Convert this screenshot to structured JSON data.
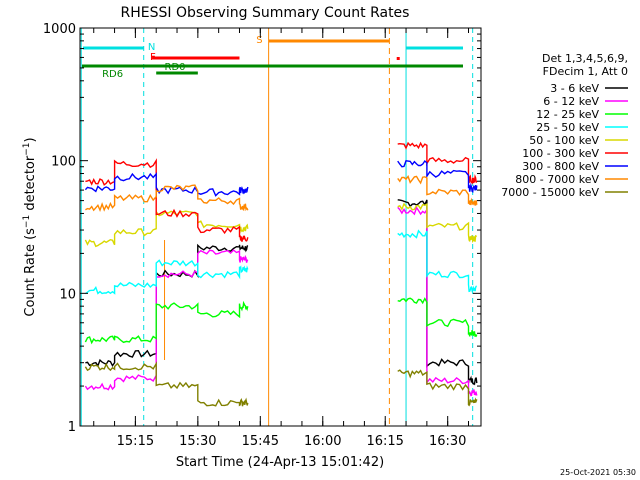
{
  "chart_data": {
    "type": "line",
    "title": "RHESSI Observing Summary Count Rates",
    "xlabel": "Start Time (24-Apr-13 15:01:42)",
    "ylabel": "Count Rate (s⁻¹ detector⁻¹)",
    "yscale": "log",
    "xlim": [
      "15:01:42",
      "16:38:00"
    ],
    "ylim": [
      1,
      1000
    ],
    "x_ticks": [
      "15:15",
      "15:30",
      "15:45",
      "16:00",
      "16:15",
      "16:30"
    ],
    "y_ticks": [
      "1",
      "10",
      "100",
      "1000"
    ],
    "legend": {
      "placement": "right",
      "header": [
        "Det 1,3,4,5,6,9,",
        "FDecim 1, Att 0"
      ]
    },
    "flag_labels": {
      "night": "N",
      "flare": "F",
      "saa": "S",
      "rd0": "RD0",
      "rd6": "RD6"
    },
    "series": [
      {
        "name": "3 - 6 keV",
        "color": "#000000",
        "values": [
          3.0,
          3.5,
          14,
          22,
          22,
          0,
          0,
          48,
          3.0,
          2.2
        ]
      },
      {
        "name": "6 - 12 keV",
        "color": "#ff00ff",
        "values": [
          2.0,
          2.3,
          14,
          20,
          18,
          0,
          0,
          42,
          2.2,
          1.8
        ]
      },
      {
        "name": "12 - 25 keV",
        "color": "#00ff00",
        "values": [
          4.5,
          4.5,
          8,
          7,
          8,
          0,
          0,
          9,
          6,
          5
        ]
      },
      {
        "name": "25 - 50 keV",
        "color": "#00ffff",
        "values": [
          10.5,
          11.5,
          17,
          14,
          15,
          0,
          0,
          28,
          14,
          11
        ]
      },
      {
        "name": "50 - 100 keV",
        "color": "#d8d800",
        "values": [
          24,
          29,
          40,
          33,
          31,
          0,
          0,
          45,
          32,
          26
        ]
      },
      {
        "name": "100 - 300 keV",
        "color": "#ff0000",
        "values": [
          70,
          95,
          40,
          30,
          26,
          0,
          0,
          130,
          100,
          72
        ]
      },
      {
        "name": "300 - 800 keV",
        "color": "#0000ff",
        "values": [
          62,
          75,
          60,
          58,
          60,
          0,
          0,
          95,
          80,
          62
        ]
      },
      {
        "name": "800 - 7000 keV",
        "color": "#ff8800",
        "values": [
          45,
          52,
          62,
          50,
          45,
          0,
          0,
          72,
          58,
          48
        ]
      },
      {
        "name": "7000 - 15000 keV",
        "color": "#808000",
        "values": [
          2.8,
          2.8,
          2.0,
          1.5,
          1.5,
          0,
          0,
          2.5,
          2.0,
          1.5
        ]
      }
    ],
    "x": [
      "15:03",
      "15:10",
      "15:20",
      "15:30",
      "15:40",
      "15:47",
      "16:14",
      "16:18",
      "16:25",
      "16:35"
    ]
  },
  "footer": {
    "timestamp": "25-Oct-2021 05:30"
  }
}
